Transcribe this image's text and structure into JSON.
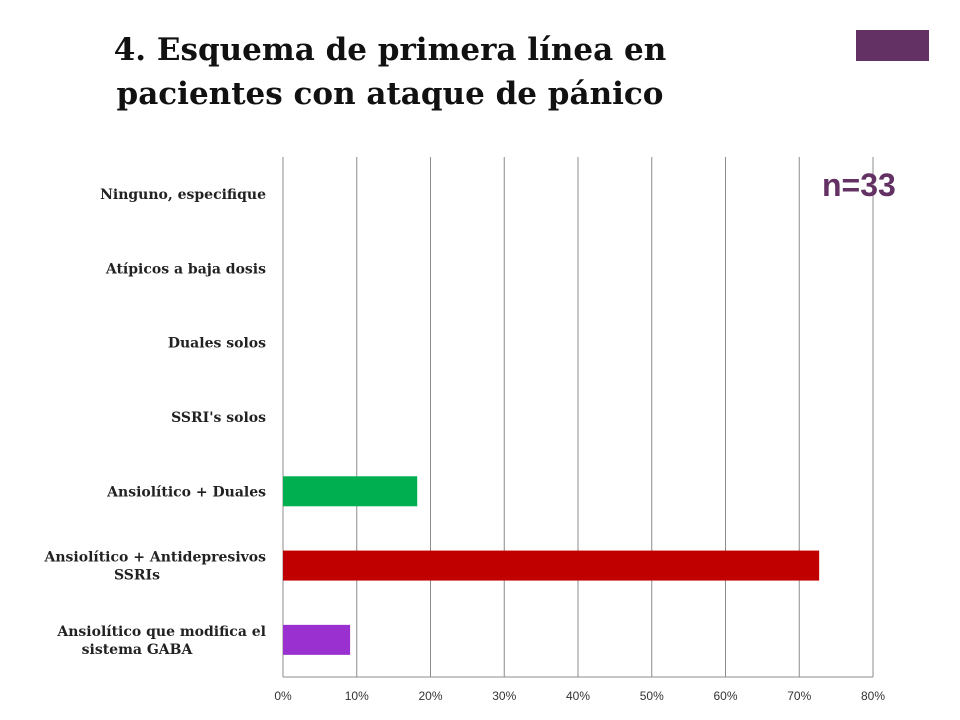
{
  "slide": {
    "title_line1": "4. Esquema de primera línea en",
    "title_line2": "pacientes con ataque de pánico",
    "accent_color": "#633163",
    "n_label": "n=33",
    "n_color": "#633163"
  },
  "chart_data": {
    "type": "bar",
    "orientation": "horizontal",
    "categories": [
      [
        "Ninguno, especifique"
      ],
      [
        "Atípicos a baja dosis"
      ],
      [
        "Duales solos"
      ],
      [
        "SSRI's solos"
      ],
      [
        "Ansiolítico + Duales"
      ],
      [
        "Ansiolítico + Antidepresivos",
        "SSRIs"
      ],
      [
        "Ansiolítico que modifica el",
        "sistema GABA"
      ]
    ],
    "values": [
      0,
      0,
      0,
      0,
      18.2,
      72.7,
      9.1
    ],
    "colors": [
      "#7f7f7f",
      "#7f7f7f",
      "#7f7f7f",
      "#7f7f7f",
      "#00b050",
      "#c00000",
      "#9b30d0"
    ],
    "xlim": [
      0,
      80
    ],
    "xticks": [
      0,
      10,
      20,
      30,
      40,
      50,
      60,
      70,
      80
    ],
    "tick_format": "{v}%",
    "grid": true
  }
}
